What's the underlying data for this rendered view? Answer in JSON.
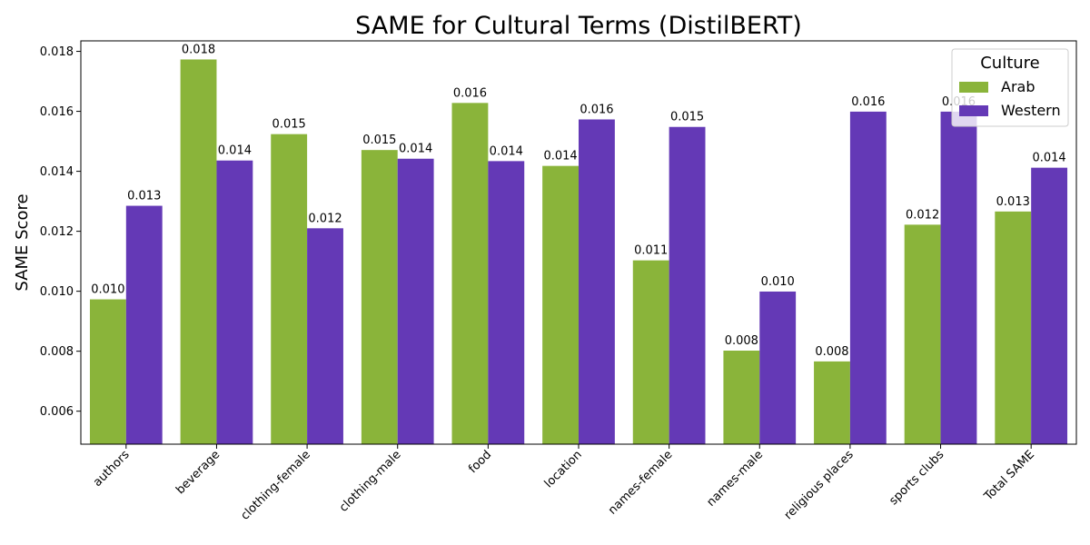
{
  "chart_data": {
    "type": "bar",
    "title": "SAME for Cultural Terms (DistilBERT)",
    "xlabel": "",
    "ylabel": "SAME Score",
    "ylim": [
      0.0049,
      0.01835
    ],
    "yticks": [
      0.006,
      0.008,
      0.01,
      0.012,
      0.014,
      0.016,
      0.018
    ],
    "ytick_labels": [
      "0.006",
      "0.008",
      "0.010",
      "0.012",
      "0.014",
      "0.016",
      "0.018"
    ],
    "categories": [
      "authors",
      "beverage",
      "clothing-female",
      "clothing-male",
      "food",
      "location",
      "names-female",
      "names-male",
      "religious places",
      "sports clubs",
      "Total SAME"
    ],
    "legend": {
      "title": "Culture",
      "placement": "top-right"
    },
    "series": [
      {
        "name": "Arab",
        "color": "#8ab43a",
        "values": [
          0.00973,
          0.01773,
          0.01524,
          0.01471,
          0.01628,
          0.01418,
          0.01103,
          0.00802,
          0.00766,
          0.01222,
          0.01266
        ],
        "labels": [
          "0.010",
          "0.018",
          "0.015",
          "0.015",
          "0.016",
          "0.014",
          "0.011",
          "0.008",
          "0.008",
          "0.012",
          "0.013"
        ]
      },
      {
        "name": "Western",
        "color": "#6439b6",
        "values": [
          0.01285,
          0.01436,
          0.0121,
          0.01442,
          0.01434,
          0.01573,
          0.01548,
          0.00999,
          0.01599,
          0.01599,
          0.01412
        ],
        "labels": [
          "0.013",
          "0.014",
          "0.012",
          "0.014",
          "0.014",
          "0.016",
          "0.015",
          "0.010",
          "0.016",
          "0.016",
          "0.014"
        ]
      }
    ]
  }
}
